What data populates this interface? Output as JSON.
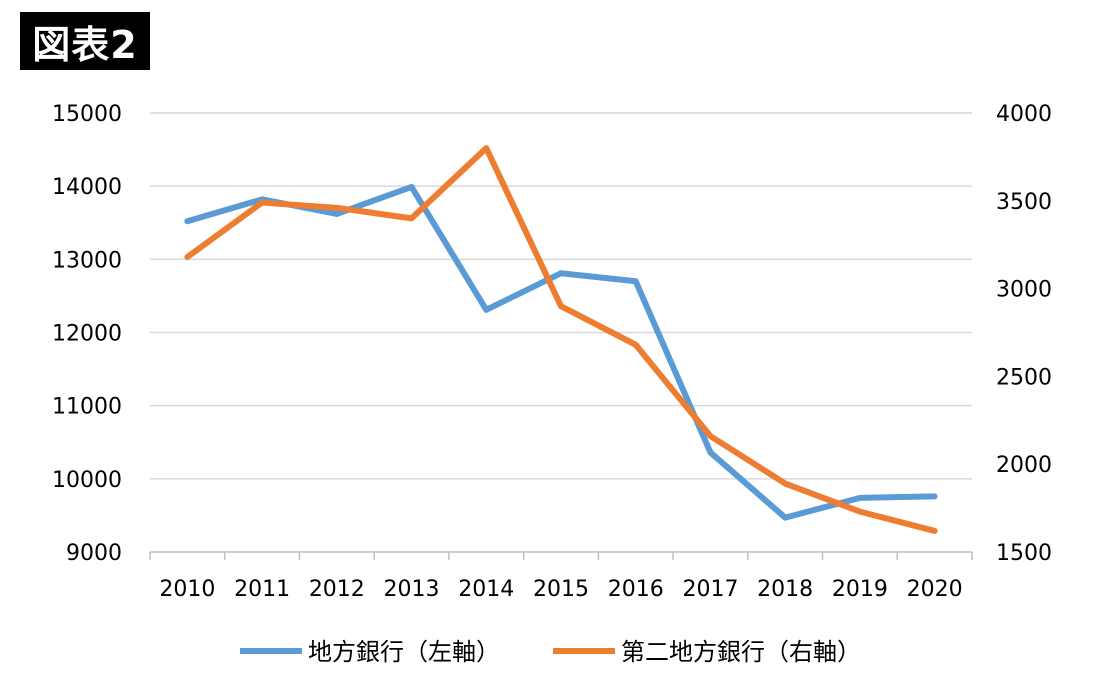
{
  "figure_label": "図表2",
  "chart_data": {
    "type": "line",
    "categories": [
      "2010",
      "2011",
      "2012",
      "2013",
      "2014",
      "2015",
      "2016",
      "2017",
      "2018",
      "2019",
      "2020"
    ],
    "y_left": {
      "min": 9000,
      "max": 15000,
      "ticks": [
        9000,
        10000,
        11000,
        12000,
        13000,
        14000,
        15000
      ]
    },
    "y_right": {
      "min": 1500,
      "max": 4000,
      "ticks": [
        1500,
        2000,
        2500,
        3000,
        3500,
        4000
      ]
    },
    "series": [
      {
        "name": "地方銀行（左軸）",
        "axis": "left",
        "color": "#5B9BD5",
        "values": [
          13520,
          13820,
          13620,
          13990,
          12310,
          12810,
          12700,
          10360,
          9470,
          9740,
          9760
        ]
      },
      {
        "name": "第二地方銀行（右軸）",
        "axis": "right",
        "color": "#ED7D31",
        "values": [
          3180,
          3490,
          3460,
          3400,
          3800,
          2900,
          2680,
          2160,
          1890,
          1730,
          1620
        ]
      }
    ],
    "grid": true,
    "legend": "bottom-center"
  }
}
